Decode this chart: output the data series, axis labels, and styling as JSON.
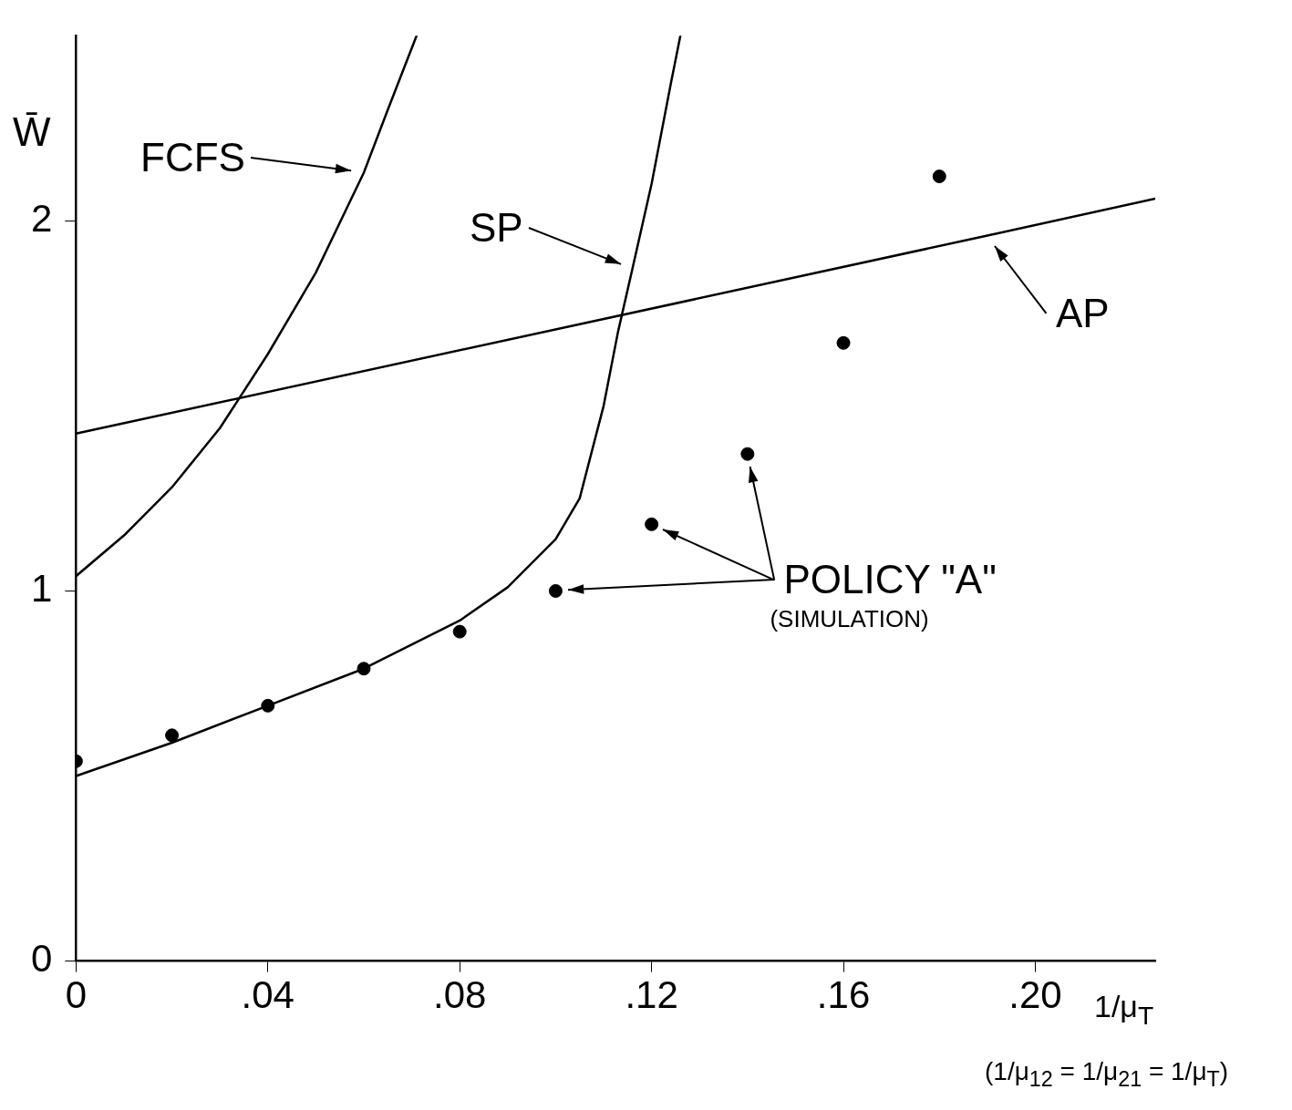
{
  "chart_data": {
    "type": "line",
    "ylabel": "W̄",
    "xlabel": "1/μ$_{T}$",
    "annotations": [
      "(1/μ$_{12}$ = 1/μ$_{21}$ = 1/μ$_{T}$)",
      "(SIMULATION)",
      "POLICY \"A\"",
      {
        "text": "FCFS",
        "x": 0.06,
        "y": 2.13
      },
      {
        "text": "SP",
        "x": 0.116,
        "y": 1.87
      },
      {
        "text": "AP",
        "x": 0.19,
        "y": 1.96
      }
    ],
    "xlim": [
      0,
      0.225
    ],
    "xticks": [
      0,
      {
        "value": 0.04,
        "label": ".04"
      },
      {
        "value": 0.08,
        "label": ".08"
      },
      {
        "value": 0.12,
        "label": ".12"
      },
      {
        "value": 0.16,
        "label": ".16"
      },
      {
        "value": 0.2,
        "label": ".20"
      }
    ],
    "ylim": [
      0,
      2.5
    ],
    "yticks": [
      0,
      1,
      2
    ],
    "grid": false,
    "legend": false,
    "marker": "none",
    "line_style": "solid",
    "series": [
      {
        "color": "#000000",
        "x": [
          0,
          0.01,
          0.02,
          0.03,
          0.04,
          0.05,
          0.06,
          0.065,
          0.071
        ],
        "values": [
          1.04,
          1.15,
          1.28,
          1.44,
          1.64,
          1.86,
          2.13,
          2.3,
          2.5
        ]
      },
      {
        "color": "#000000",
        "x": [
          0,
          0.02,
          0.04,
          0.06,
          0.08,
          0.09,
          0.1,
          0.105,
          0.11,
          0.113,
          0.116,
          0.12,
          0.124,
          0.126
        ],
        "values": [
          0.5,
          0.59,
          0.69,
          0.79,
          0.92,
          1.01,
          1.14,
          1.25,
          1.5,
          1.7,
          1.87,
          2.1,
          2.37,
          2.5
        ]
      },
      {
        "color": "#000000",
        "x": [
          0,
          0.19,
          0.225
        ],
        "values": [
          1.425,
          1.96,
          2.06
        ]
      },
      {
        "type": "scatter",
        "marker": "circle",
        "color": "#000000",
        "x": [
          0,
          0.02,
          0.04,
          0.06,
          0.08,
          0.1,
          0.12,
          0.14,
          0.16,
          0.18
        ],
        "values": [
          0.54,
          0.61,
          0.69,
          0.79,
          0.89,
          1.0,
          1.18,
          1.37,
          1.67,
          2.12
        ]
      }
    ]
  }
}
